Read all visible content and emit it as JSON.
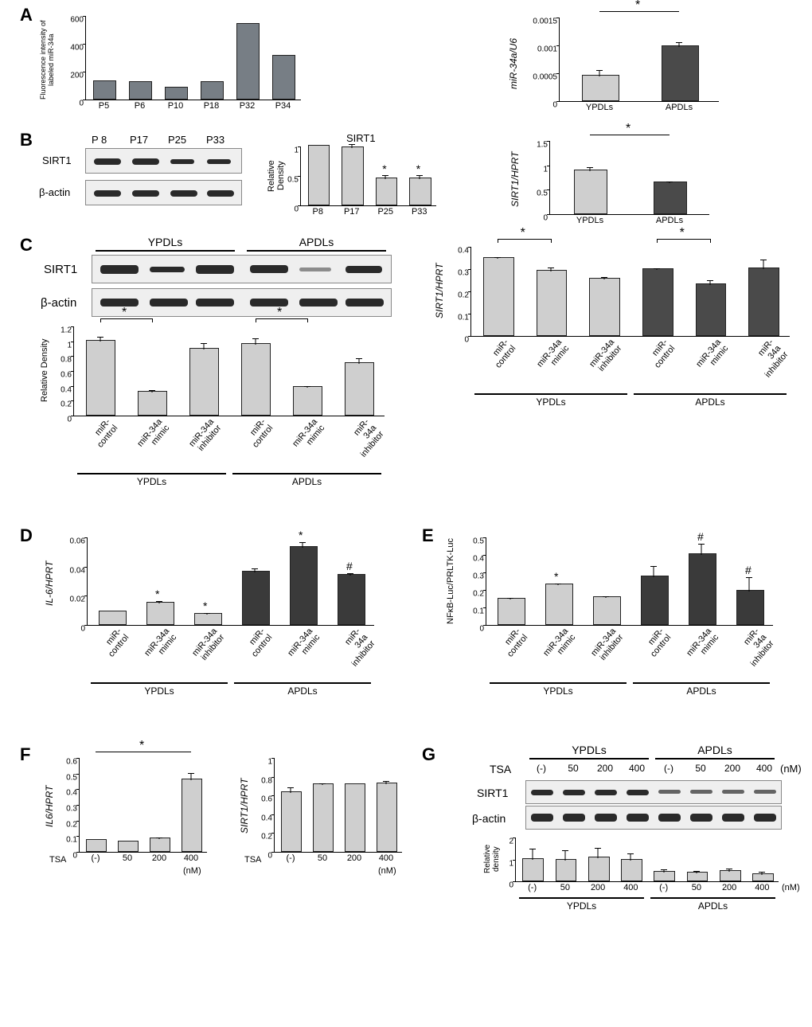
{
  "labels": {
    "A": "A",
    "B": "B",
    "C": "C",
    "D": "D",
    "E": "E",
    "F": "F",
    "G": "G",
    "SIRT1": "SIRT1",
    "bactin": "β-actin",
    "YPDLs": "YPDLs",
    "APDLs": "APDLs",
    "TSA": "TSA",
    "nM": "(nM)"
  },
  "A_left": {
    "ylabel": "Fluorescence intensity of\nlabeled miR-34a",
    "ylim": [
      0,
      600
    ],
    "yticks": [
      0,
      200,
      400,
      600
    ],
    "cats": [
      "P5",
      "P6",
      "P10",
      "P18",
      "P32",
      "P34"
    ],
    "vals": [
      125,
      120,
      80,
      120,
      540,
      310
    ],
    "color": "#777e85"
  },
  "A_right": {
    "ylabel": "miR-34a/U6",
    "ylim": [
      0,
      0.0015
    ],
    "yticks": [
      0,
      0.0005,
      0.001,
      0.0015
    ],
    "cats": [
      "YPDLs",
      "APDLs"
    ],
    "vals": [
      0.00045,
      0.00097
    ],
    "errs": [
      9e-05,
      7e-05
    ],
    "colors": [
      "#cfcfcf",
      "#4a4a4a"
    ],
    "sig": "*"
  },
  "B_blot": {
    "lanes": [
      "P 8",
      "P17",
      "P25",
      "P33"
    ]
  },
  "B_mid": {
    "title": "SIRT1",
    "ylabel": "Relative Density",
    "ylim": [
      0,
      1
    ],
    "yticks": [
      0,
      0.5,
      1
    ],
    "cats": [
      "P8",
      "P17",
      "P25",
      "P33"
    ],
    "vals": [
      1.0,
      0.97,
      0.45,
      0.45
    ],
    "errs": [
      0,
      0.06,
      0.05,
      0.05
    ],
    "sig_idx": [
      2,
      3
    ],
    "color": "#cfcfcf"
  },
  "B_right": {
    "ylabel": "SIRT1/HPRT",
    "ylim": [
      0,
      1.5
    ],
    "yticks": [
      0,
      0.5,
      1,
      1.5
    ],
    "cats": [
      "YPDLs",
      "APDLs"
    ],
    "vals": [
      0.88,
      0.63
    ],
    "errs": [
      0.06,
      0.02
    ],
    "colors": [
      "#cfcfcf",
      "#4a4a4a"
    ],
    "sig": "*"
  },
  "C_blot_groups": [
    "YPDLs",
    "APDLs"
  ],
  "C_dens": {
    "ylabel": "Relative Density",
    "ylim": [
      0,
      1.2
    ],
    "yticks": [
      0,
      0.2,
      0.4,
      0.6,
      0.8,
      1,
      1.2
    ],
    "cats": [
      "miR-\ncontrol",
      "miR-34a\nmimic",
      "miR-34a\ninhibitor",
      "miR-\ncontrol",
      "miR-34a\nmimic",
      "miR-34a\ninhibitor"
    ],
    "vals": [
      1.0,
      0.31,
      0.89,
      0.95,
      0.37,
      0.7
    ],
    "errs": [
      0.05,
      0.02,
      0.07,
      0.08,
      0.02,
      0.06
    ],
    "color": "#cfcfcf",
    "sig_pairs": [
      [
        0,
        1
      ],
      [
        3,
        4
      ]
    ]
  },
  "C_right": {
    "ylabel": "SIRT1/HPRT",
    "ylim": [
      0,
      0.4
    ],
    "yticks": [
      0,
      0.1,
      0.2,
      0.3,
      0.4
    ],
    "cats": [
      "miR-\ncontrol",
      "miR-34a\nmimic",
      "miR-34a\ninhibitor",
      "miR-\ncontrol",
      "miR-34a\nmimic",
      "miR-34a\ninhibitor"
    ],
    "vals": [
      0.345,
      0.29,
      0.255,
      0.295,
      0.23,
      0.3
    ],
    "errs": [
      0.005,
      0.012,
      0.005,
      0.005,
      0.015,
      0.04
    ],
    "colors": [
      "#cfcfcf",
      "#cfcfcf",
      "#cfcfcf",
      "#4a4a4a",
      "#4a4a4a",
      "#4a4a4a"
    ],
    "sig_pairs": [
      [
        0,
        1
      ],
      [
        3,
        4
      ]
    ]
  },
  "D": {
    "ylabel": "IL-6/HPRT",
    "ylim": [
      0,
      0.06
    ],
    "yticks": [
      0,
      0.02,
      0.04,
      0.06
    ],
    "cats": [
      "miR-\ncontrol",
      "miR-34a\nmimic",
      "miR-34a\ninhibitor",
      "miR-\ncontrol",
      "miR-34a\nmimic",
      "miR-34a\ninhibitor"
    ],
    "vals": [
      0.009,
      0.015,
      0.007,
      0.036,
      0.053,
      0.034
    ],
    "errs": [
      0,
      0.001,
      0.0005,
      0.002,
      0.003,
      0.001
    ],
    "colors": [
      "#cfcfcf",
      "#cfcfcf",
      "#cfcfcf",
      "#3a3a3a",
      "#3a3a3a",
      "#3a3a3a"
    ],
    "marks": [
      "",
      "*",
      "*",
      "",
      "*",
      "#"
    ]
  },
  "E": {
    "ylabel": "NFκB-Luc/PRLTK-Luc",
    "ylim": [
      0,
      0.5
    ],
    "yticks": [
      0,
      0.1,
      0.2,
      0.3,
      0.4,
      0.5
    ],
    "cats": [
      "miR-\ncontrol",
      "miR-34a\nmimic",
      "miR-34a\ninhibitor",
      "miR-\ncontrol",
      "miR-34a\nmimic",
      "miR-34a\ninhibitor"
    ],
    "vals": [
      0.145,
      0.228,
      0.155,
      0.275,
      0.4,
      0.19
    ],
    "errs": [
      0.003,
      0.004,
      0.005,
      0.055,
      0.06,
      0.08
    ],
    "colors": [
      "#cfcfcf",
      "#cfcfcf",
      "#cfcfcf",
      "#3a3a3a",
      "#3a3a3a",
      "#3a3a3a"
    ],
    "marks": [
      "",
      "*",
      "",
      "",
      "#",
      "#"
    ]
  },
  "F_left": {
    "ylabel": "IL6/HPRT",
    "ylim": [
      0,
      0.6
    ],
    "yticks": [
      0,
      0.1,
      0.2,
      0.3,
      0.4,
      0.5,
      0.6
    ],
    "cats": [
      "(-)",
      "50",
      "200",
      "400"
    ],
    "vals": [
      0.07,
      0.06,
      0.08,
      0.46
    ],
    "errs": [
      0,
      0,
      0.005,
      0.04
    ],
    "color": "#cfcfcf",
    "sig": "*",
    "xprefix": "TSA",
    "unit": "(nM)"
  },
  "F_right": {
    "ylabel": "SIRT1/HPRT",
    "ylim": [
      0,
      1
    ],
    "yticks": [
      0,
      0.2,
      0.4,
      0.6,
      0.8,
      1
    ],
    "cats": [
      "(-)",
      "50",
      "200",
      "400"
    ],
    "vals": [
      0.63,
      0.71,
      0.71,
      0.72
    ],
    "errs": [
      0.05,
      0.01,
      0,
      0.03
    ],
    "color": "#cfcfcf",
    "xprefix": "TSA",
    "unit": "(nM)"
  },
  "G": {
    "lanes": [
      "(-)",
      "50",
      "200",
      "400",
      "(-)",
      "50",
      "200",
      "400"
    ],
    "unit": "(nM)",
    "dens": {
      "ylabel": "Relative\ndensity",
      "ylim": [
        0,
        2
      ],
      "yticks": [
        0,
        1,
        2
      ],
      "vals": [
        1.0,
        0.95,
        1.05,
        0.95,
        0.4,
        0.35,
        0.43,
        0.3
      ],
      "errs": [
        0.45,
        0.45,
        0.45,
        0.3,
        0.1,
        0.07,
        0.1,
        0.1
      ],
      "color": "#cfcfcf"
    }
  }
}
